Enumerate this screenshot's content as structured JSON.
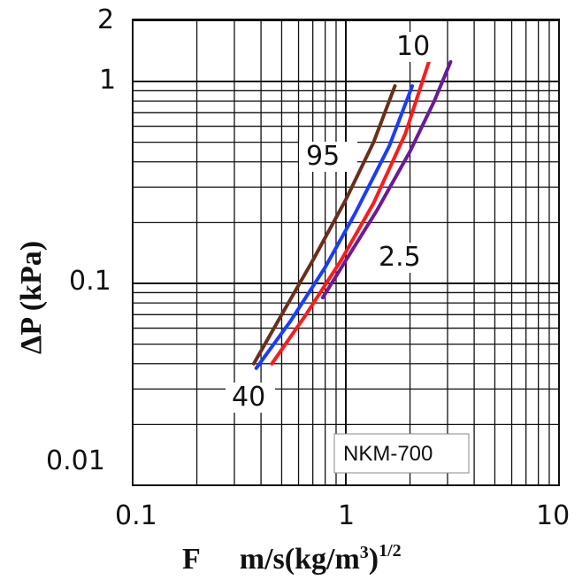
{
  "chart_data": {
    "type": "line",
    "title": "",
    "x_scale": "log",
    "y_scale": "log",
    "xlim": [
      0.1,
      10
    ],
    "ylim": [
      0.005,
      2
    ],
    "grid": true,
    "xlabel": "F    m/s(kg/m³)¹ᐟ²",
    "xlabel_parts": {
      "symbol": "F",
      "unit": "m/s(kg/m",
      "exp": "3",
      "close": ")",
      "power": "1/2"
    },
    "ylabel": "ΔP (kPa)",
    "x_ticks": [
      "0.1",
      "1",
      "10"
    ],
    "y_ticks": [
      "0.01",
      "0.1",
      "1",
      "2"
    ],
    "annotations": [
      "10",
      "95",
      "2.5",
      "40"
    ],
    "product_label": "NKM-700",
    "series": [
      {
        "color": "#6b2e1a",
        "points": [
          [
            0.37,
            0.04
          ],
          [
            0.5,
            0.07
          ],
          [
            0.7,
            0.13
          ],
          [
            1.0,
            0.26
          ],
          [
            1.35,
            0.5
          ],
          [
            1.7,
            0.95
          ]
        ]
      },
      {
        "color": "#1a3cff",
        "points": [
          [
            0.38,
            0.038
          ],
          [
            0.55,
            0.065
          ],
          [
            0.8,
            0.12
          ],
          [
            1.1,
            0.22
          ],
          [
            1.6,
            0.48
          ],
          [
            2.05,
            0.95
          ]
        ]
      },
      {
        "color": "#ff1a1a",
        "points": [
          [
            0.45,
            0.04
          ],
          [
            0.65,
            0.07
          ],
          [
            0.95,
            0.13
          ],
          [
            1.35,
            0.25
          ],
          [
            1.9,
            0.55
          ],
          [
            2.45,
            1.25
          ]
        ]
      },
      {
        "color": "#6a1a9a",
        "points": [
          [
            0.78,
            0.085
          ],
          [
            1.0,
            0.13
          ],
          [
            1.4,
            0.23
          ],
          [
            2.0,
            0.45
          ],
          [
            2.6,
            0.8
          ],
          [
            3.1,
            1.25
          ]
        ]
      }
    ]
  }
}
